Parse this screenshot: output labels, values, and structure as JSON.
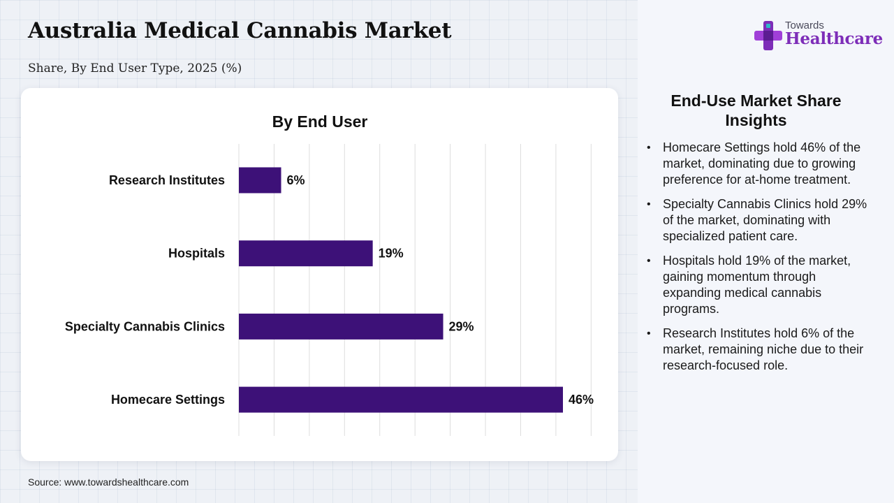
{
  "header": {
    "title": "Australia Medical Cannabis Market",
    "subtitle": "Share, By End User Type, 2025 (%)"
  },
  "logo": {
    "top_text": "Towards",
    "main_text": "Healthcare"
  },
  "colors": {
    "bar": "#3d1178",
    "brand": "#7d2db8",
    "grid": "#dddddd"
  },
  "chart_data": {
    "type": "bar",
    "orientation": "horizontal",
    "title": "By End User",
    "categories": [
      "Research Institutes",
      "Hospitals",
      "Specialty Cannabis Clinics",
      "Homecare Settings"
    ],
    "values": [
      6,
      19,
      29,
      46
    ],
    "value_labels": [
      "6%",
      "19%",
      "29%",
      "46%"
    ],
    "xlim": [
      0,
      50
    ],
    "grid": true,
    "legend": "none"
  },
  "insights": {
    "title": "End-Use Market Share Insights",
    "items": [
      "Homecare Settings hold 46% of the market, dominating due to growing preference for at-home treatment.",
      "Specialty Cannabis Clinics hold 29% of the market, dominating with specialized patient care.",
      "Hospitals hold 19% of the market, gaining momentum through expanding medical cannabis programs.",
      "Research Institutes hold 6% of the market, remaining niche due to their research-focused role."
    ]
  },
  "footer": {
    "source": "Source: www.towardshealthcare.com"
  }
}
